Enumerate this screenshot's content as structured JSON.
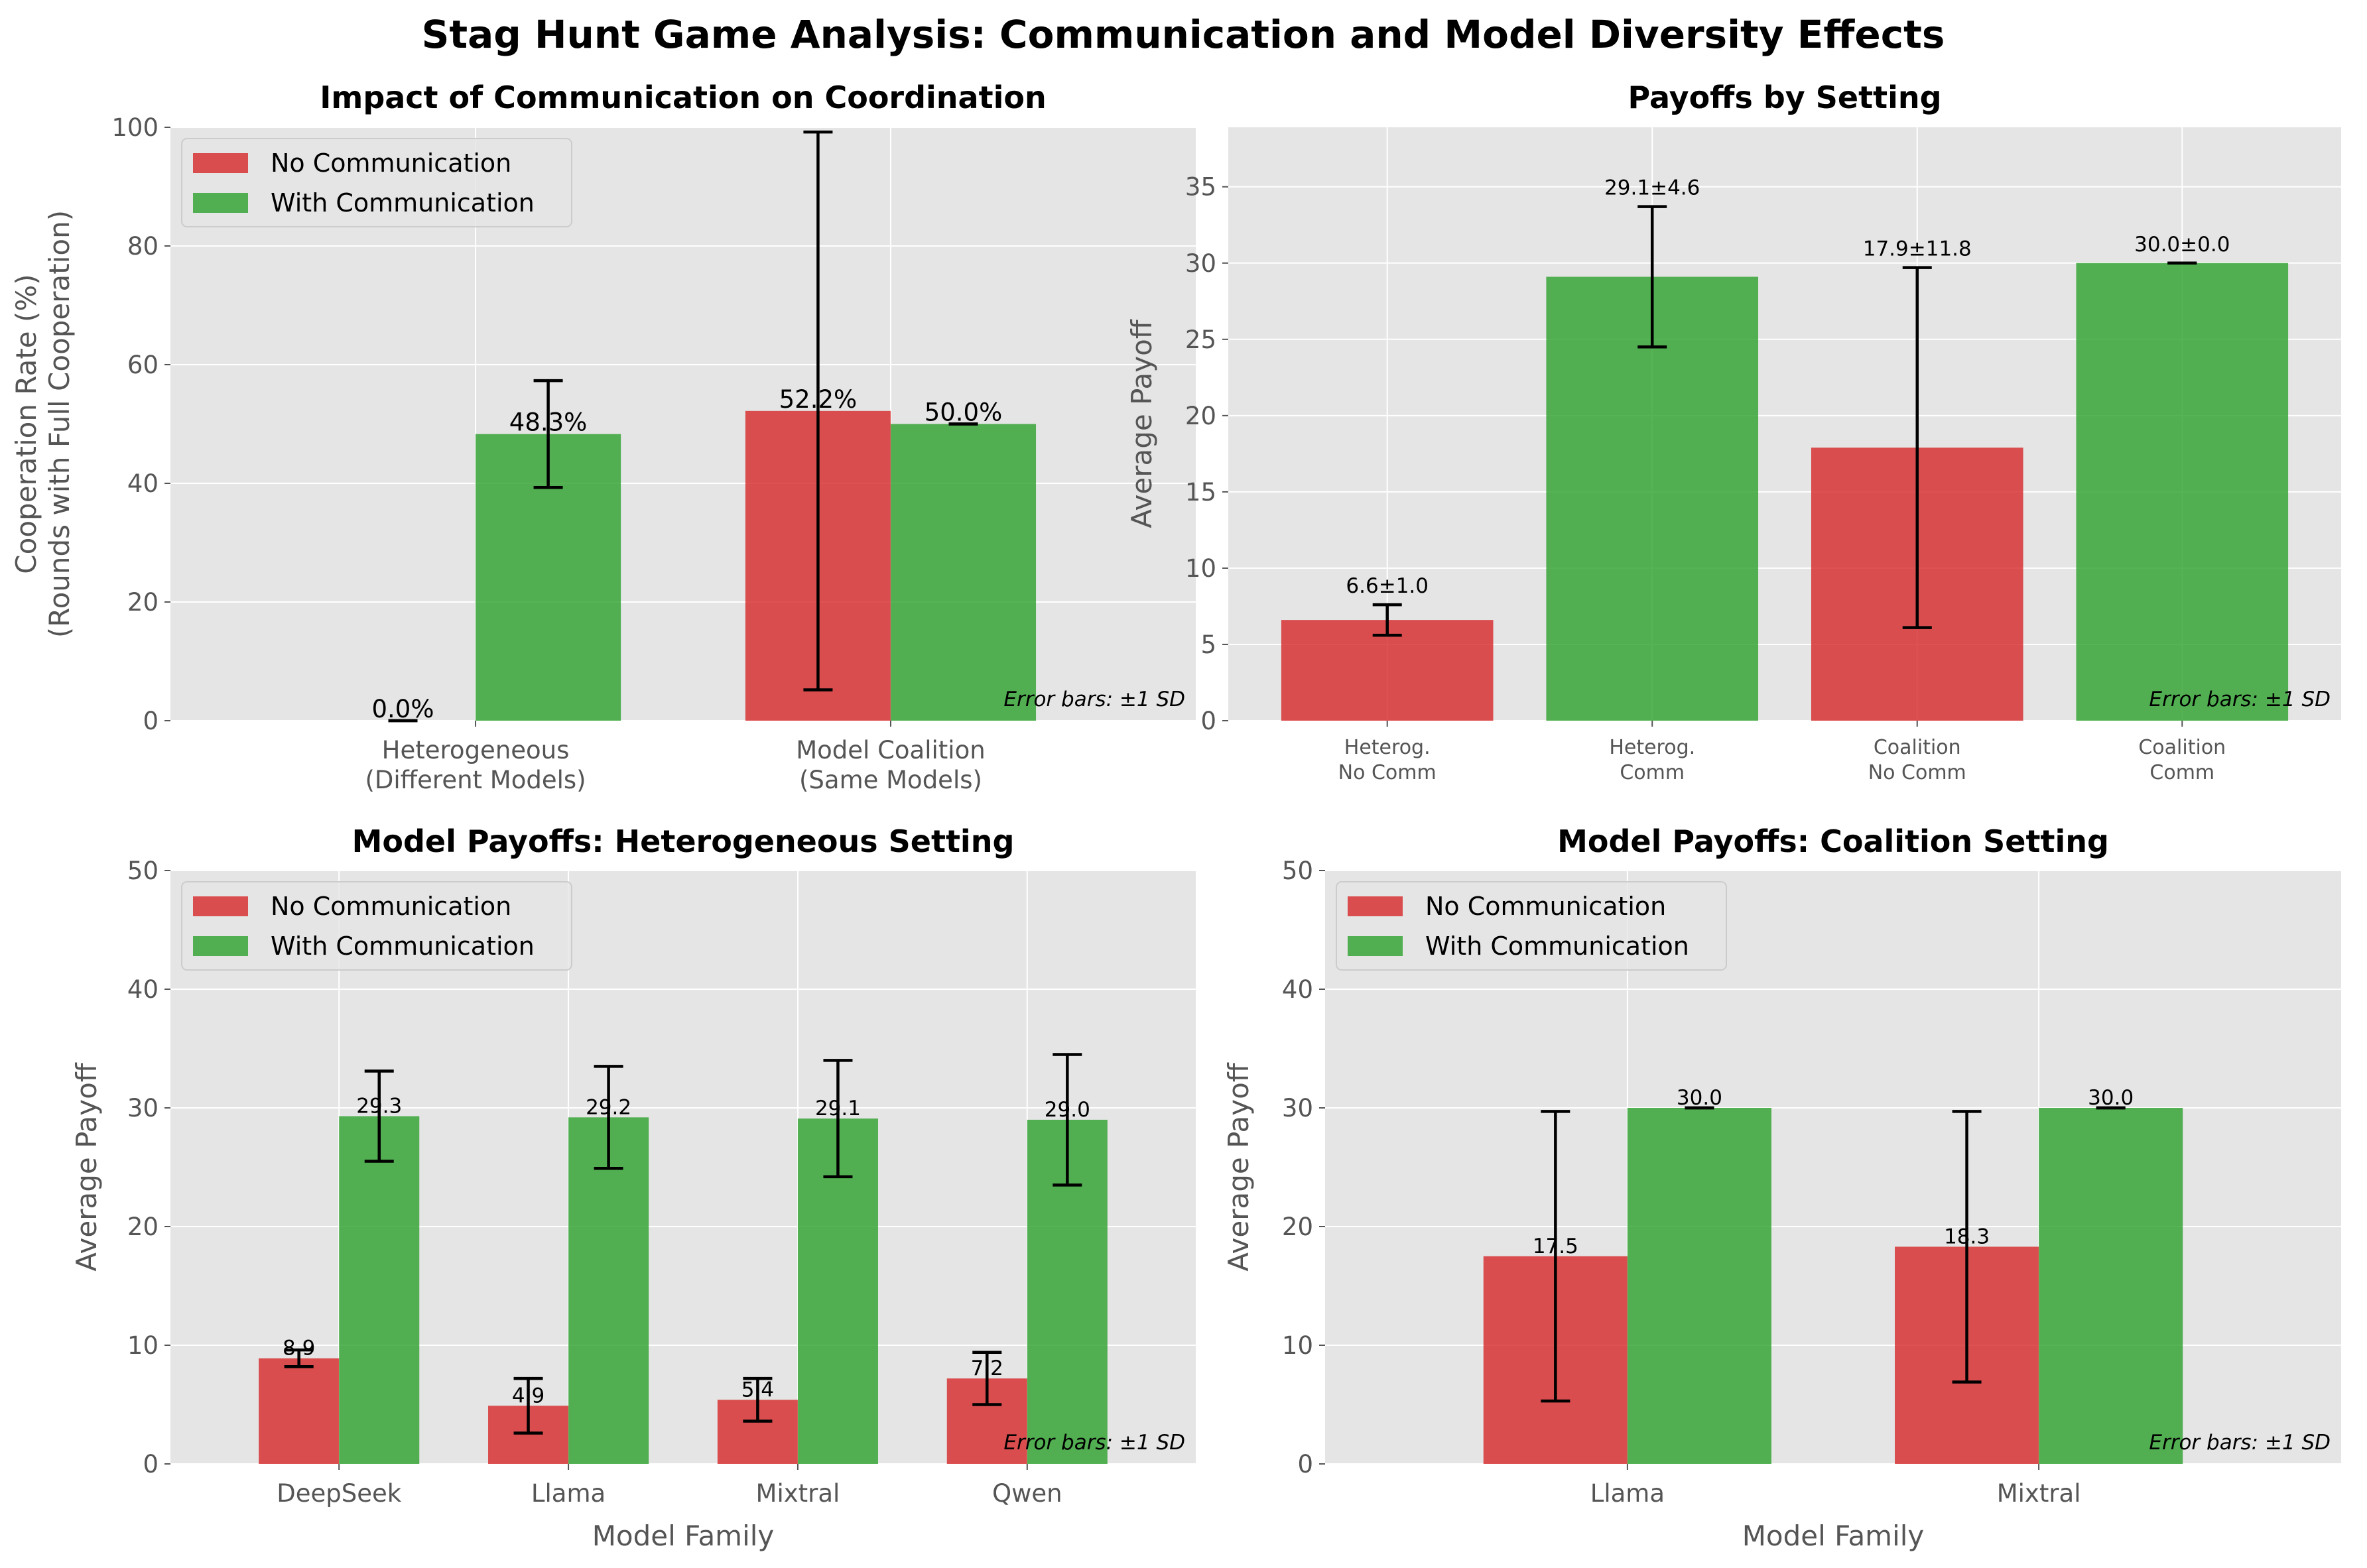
{
  "suptitle": "Stag Hunt Game Analysis: Communication and Model Diversity Effects",
  "note": "Error bars: ±1 SD",
  "colors": {
    "no_comm": "#d62728",
    "with_comm": "#2ca02c",
    "panel_bg": "#e5e5e5",
    "grid": "#ffffff"
  },
  "chart_data": [
    {
      "id": "p1",
      "type": "bar",
      "title": "Impact of Communication on Coordination",
      "ylabel": "Cooperation Rate (%)\n(Rounds with Full Cooperation)",
      "xlabel": "",
      "ylim": [
        0,
        100
      ],
      "yticks": [
        0,
        20,
        40,
        60,
        80,
        100
      ],
      "categories": [
        "Heterogeneous\n(Different Models)",
        "Model Coalition\n(Same Models)"
      ],
      "series": [
        {
          "name": "No Communication",
          "values": [
            0.0,
            52.2
          ],
          "errors": [
            0.0,
            47.0
          ],
          "labels": [
            "0.0%",
            "52.2%"
          ]
        },
        {
          "name": "With Communication",
          "values": [
            48.3,
            50.0
          ],
          "errors": [
            9.0,
            0.0
          ],
          "labels": [
            "48.3%",
            "50.0%"
          ]
        }
      ],
      "legend": "upper-left",
      "note": "Error bars: ±1 SD"
    },
    {
      "id": "p2",
      "type": "bar",
      "title": "Payoffs by Setting",
      "ylabel": "Average Payoff",
      "xlabel": "",
      "ylim": [
        0,
        38.9
      ],
      "yticks": [
        0,
        5,
        10,
        15,
        20,
        25,
        30,
        35
      ],
      "categories": [
        "Heterog.\nNo Comm",
        "Heterog.\nComm",
        "Coalition\nNo Comm",
        "Coalition\nComm"
      ],
      "values": [
        6.6,
        29.1,
        17.9,
        30.0
      ],
      "errors": [
        1.0,
        4.6,
        11.8,
        0.0
      ],
      "labels": [
        "6.6±1.0",
        "29.1±4.6",
        "17.9±11.8",
        "30.0±0.0"
      ],
      "colors": [
        "no_comm",
        "with_comm",
        "no_comm",
        "with_comm"
      ],
      "note": "Error bars: ±1 SD"
    },
    {
      "id": "p3",
      "type": "bar",
      "title": "Model Payoffs: Heterogeneous Setting",
      "ylabel": "Average Payoff",
      "xlabel": "Model Family",
      "ylim": [
        0,
        50
      ],
      "yticks": [
        0,
        10,
        20,
        30,
        40,
        50
      ],
      "categories": [
        "DeepSeek",
        "Llama",
        "Mixtral",
        "Qwen"
      ],
      "series": [
        {
          "name": "No Communication",
          "values": [
            8.9,
            4.9,
            5.4,
            7.2
          ],
          "errors": [
            0.7,
            2.3,
            1.8,
            2.2
          ],
          "labels": [
            "8.9",
            "4.9",
            "5.4",
            "7.2"
          ]
        },
        {
          "name": "With Communication",
          "values": [
            29.3,
            29.2,
            29.1,
            29.0
          ],
          "errors": [
            3.8,
            4.3,
            4.9,
            5.5
          ],
          "labels": [
            "29.3",
            "29.2",
            "29.1",
            "29.0"
          ]
        }
      ],
      "legend": "upper-left",
      "note": "Error bars: ±1 SD"
    },
    {
      "id": "p4",
      "type": "bar",
      "title": "Model Payoffs: Coalition Setting",
      "ylabel": "Average Payoff",
      "xlabel": "Model Family",
      "ylim": [
        0,
        50
      ],
      "yticks": [
        0,
        10,
        20,
        30,
        40,
        50
      ],
      "categories": [
        "Llama",
        "Mixtral"
      ],
      "series": [
        {
          "name": "No Communication",
          "values": [
            17.5,
            18.3
          ],
          "errors": [
            12.2,
            11.4
          ],
          "labels": [
            "17.5",
            "18.3"
          ]
        },
        {
          "name": "With Communication",
          "values": [
            30.0,
            30.0
          ],
          "errors": [
            0.0,
            0.0
          ],
          "labels": [
            "30.0",
            "30.0"
          ]
        }
      ],
      "legend": "upper-left",
      "note": "Error bars: ±1 SD"
    }
  ]
}
